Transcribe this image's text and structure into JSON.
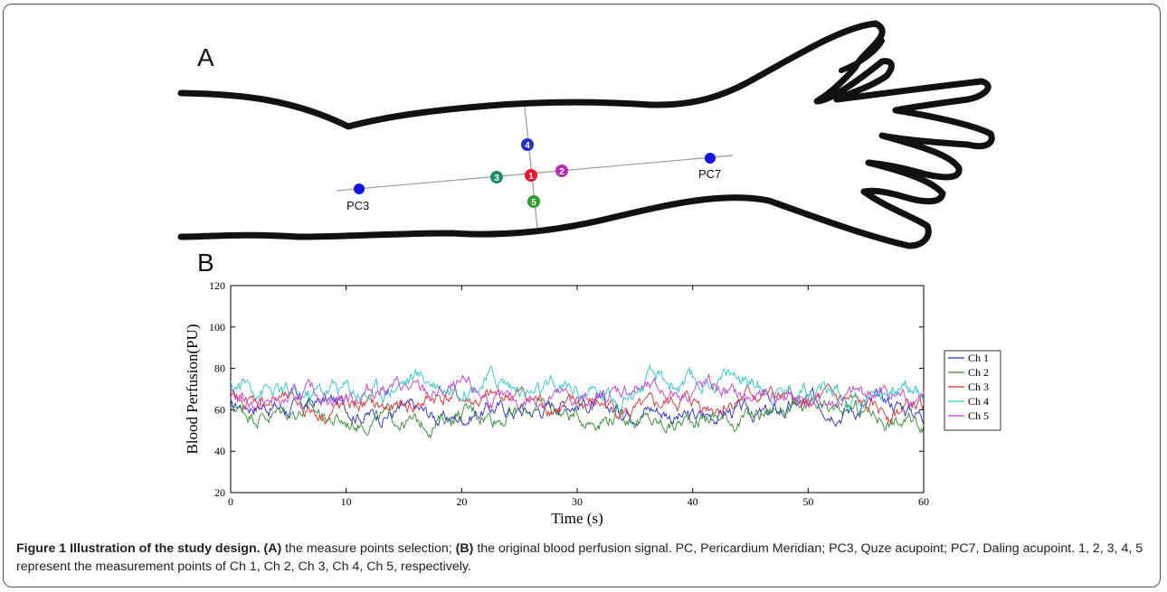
{
  "figure": {
    "panel_a_label": "A",
    "panel_b_label": "B",
    "points": [
      {
        "label": "1",
        "color": "#e8172f"
      },
      {
        "label": "2",
        "color": "#b42fb3"
      },
      {
        "label": "3",
        "color": "#1e8a6e"
      },
      {
        "label": "4",
        "color": "#2431c8"
      },
      {
        "label": "5",
        "color": "#2c9c2c"
      }
    ],
    "acupoints": [
      {
        "label": "PC3",
        "color": "#1414e6"
      },
      {
        "label": "PC7",
        "color": "#1414e6"
      }
    ]
  },
  "chart_data": {
    "type": "line",
    "xlabel": "Time (s)",
    "ylabel": "Blood Perfusion(PU)",
    "xlim": [
      0,
      60
    ],
    "ylim": [
      20,
      120
    ],
    "xticks": [
      0,
      10,
      20,
      30,
      40,
      50,
      60
    ],
    "yticks": [
      20,
      40,
      60,
      80,
      100,
      120
    ],
    "grid": false,
    "legend_position": "right",
    "series": [
      {
        "name": "Ch 1",
        "color": "#2b2bd1",
        "mean": 60,
        "amplitude": 6
      },
      {
        "name": "Ch 2",
        "color": "#2e8b2e",
        "mean": 57,
        "amplitude": 6
      },
      {
        "name": "Ch 3",
        "color": "#e0302e",
        "mean": 63,
        "amplitude": 6
      },
      {
        "name": "Ch 4",
        "color": "#28c8c8",
        "mean": 71,
        "amplitude": 7
      },
      {
        "name": "Ch 5",
        "color": "#c33fd1",
        "mean": 67,
        "amplitude": 6
      }
    ]
  },
  "caption": {
    "bold": "Figure 1 Illustration of the study design. (A)",
    "text1": " the measure points selection; ",
    "bold2": "(B)",
    "text2": " the original blood perfusion signal. PC, Pericardium Meridian; PC3, Quze acupoint; PC7, Daling acupoint. 1, 2, 3, 4, 5 represent the measurement points of Ch 1, Ch 2, Ch 3, Ch 4, Ch 5, respectively."
  }
}
